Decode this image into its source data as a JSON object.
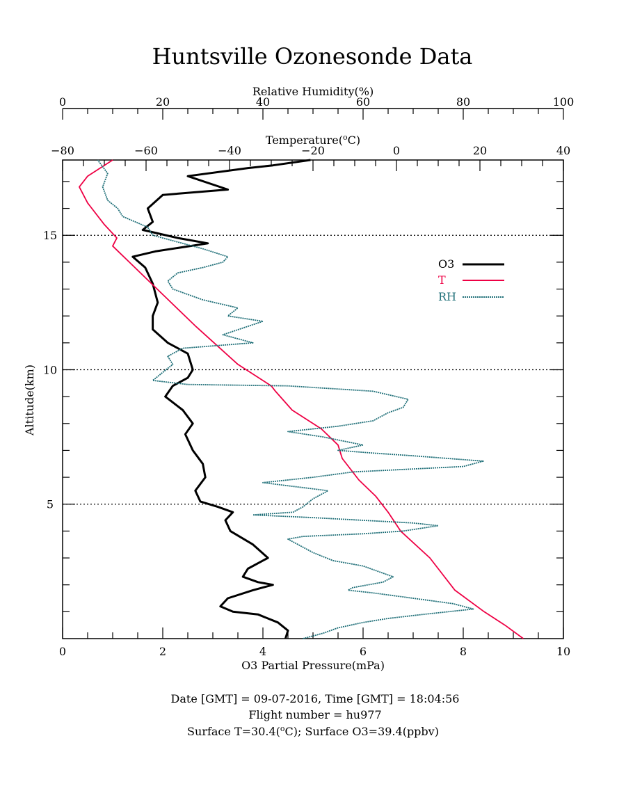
{
  "title": "Huntsville Ozonesonde Data",
  "footer": {
    "line1": "Date [GMT] = 09-07-2016,  Time [GMT] = 18:04:56",
    "line2": "Flight number = hu977",
    "line3_part1": "Surface T=30.4(",
    "line3_sup": "o",
    "line3_part2": "C); Surface O3=39.4(ppbv)"
  },
  "colors": {
    "o3": "#000000",
    "t": "#ee0044",
    "rh": "#1f6f78",
    "axis": "#000000"
  },
  "chart_data": {
    "type": "line",
    "title": "Huntsville Ozonesonde Data",
    "grid": "dotted horizontal lines at 5, 10, 15 km",
    "legend_placement": "right",
    "axes": {
      "y": {
        "label": "Altitude(km)",
        "range": [
          0,
          17.8
        ],
        "ticks": [
          5,
          10,
          15
        ]
      },
      "x_bottom": {
        "label": "O3 Partial Pressure(mPa)",
        "range": [
          0,
          10
        ],
        "ticks": [
          0,
          2,
          4,
          6,
          8,
          10
        ]
      },
      "x_top_temperature": {
        "label": "Temperature(",
        "label_sup": "o",
        "label_end": "C)",
        "range": [
          -80,
          40
        ],
        "ticks": [
          -80,
          -60,
          -40,
          -20,
          0,
          20,
          40
        ]
      },
      "x_top_humidity": {
        "label": "Relative Humidity(%)",
        "range": [
          0,
          100
        ],
        "ticks": [
          0,
          20,
          40,
          60,
          80,
          100
        ]
      }
    },
    "series": [
      {
        "name": "O3",
        "axis": "x_bottom",
        "points": [
          [
            4.45,
            0
          ],
          [
            4.5,
            0.3
          ],
          [
            4.3,
            0.6
          ],
          [
            3.9,
            0.9
          ],
          [
            3.4,
            1.0
          ],
          [
            3.15,
            1.2
          ],
          [
            3.3,
            1.5
          ],
          [
            3.8,
            1.8
          ],
          [
            4.2,
            2.0
          ],
          [
            3.9,
            2.1
          ],
          [
            3.6,
            2.3
          ],
          [
            3.7,
            2.6
          ],
          [
            4.1,
            3.0
          ],
          [
            3.8,
            3.5
          ],
          [
            3.35,
            4.0
          ],
          [
            3.25,
            4.4
          ],
          [
            3.4,
            4.7
          ],
          [
            3.1,
            4.9
          ],
          [
            2.75,
            5.1
          ],
          [
            2.65,
            5.5
          ],
          [
            2.85,
            6.0
          ],
          [
            2.8,
            6.5
          ],
          [
            2.6,
            7.0
          ],
          [
            2.45,
            7.6
          ],
          [
            2.6,
            8.0
          ],
          [
            2.4,
            8.5
          ],
          [
            2.05,
            9.0
          ],
          [
            2.2,
            9.4
          ],
          [
            2.5,
            9.7
          ],
          [
            2.6,
            10.0
          ],
          [
            2.5,
            10.6
          ],
          [
            2.1,
            11.0
          ],
          [
            1.8,
            11.5
          ],
          [
            1.8,
            12.0
          ],
          [
            1.9,
            12.5
          ],
          [
            1.8,
            13.2
          ],
          [
            1.65,
            13.8
          ],
          [
            1.4,
            14.2
          ],
          [
            1.85,
            14.4
          ],
          [
            2.9,
            14.7
          ],
          [
            2.3,
            14.9
          ],
          [
            1.6,
            15.2
          ],
          [
            1.8,
            15.5
          ],
          [
            1.7,
            16.0
          ],
          [
            2.0,
            16.5
          ],
          [
            3.3,
            16.7
          ],
          [
            2.5,
            17.2
          ],
          [
            3.7,
            17.5
          ],
          [
            4.2,
            17.6
          ],
          [
            4.95,
            17.8
          ]
        ]
      },
      {
        "name": "T",
        "axis": "x_top_temperature",
        "points": [
          [
            30.4,
            0
          ],
          [
            26,
            0.5
          ],
          [
            21,
            1.0
          ],
          [
            14,
            1.8
          ],
          [
            8,
            3.0
          ],
          [
            1,
            4.0
          ],
          [
            -2,
            4.7
          ],
          [
            -5,
            5.3
          ],
          [
            -9,
            5.9
          ],
          [
            -13,
            6.7
          ],
          [
            -14,
            7.2
          ],
          [
            -18,
            7.8
          ],
          [
            -25,
            8.5
          ],
          [
            -29,
            9.2
          ],
          [
            -30,
            9.4
          ],
          [
            -38,
            10.2
          ],
          [
            -43,
            10.9
          ],
          [
            -48,
            11.6
          ],
          [
            -54,
            12.5
          ],
          [
            -60,
            13.4
          ],
          [
            -64,
            14.0
          ],
          [
            -66,
            14.3
          ],
          [
            -68,
            14.6
          ],
          [
            -67,
            14.9
          ],
          [
            -70,
            15.4
          ],
          [
            -74,
            16.2
          ],
          [
            -76,
            16.8
          ],
          [
            -74,
            17.2
          ],
          [
            -72,
            17.4
          ],
          [
            -70,
            17.6
          ],
          [
            -68,
            17.8
          ]
        ]
      },
      {
        "name": "RH",
        "axis": "x_top_humidity",
        "points": [
          [
            48,
            0
          ],
          [
            52,
            0.2
          ],
          [
            55,
            0.4
          ],
          [
            60,
            0.6
          ],
          [
            65,
            0.75
          ],
          [
            72,
            0.9
          ],
          [
            82,
            1.1
          ],
          [
            78,
            1.3
          ],
          [
            70,
            1.5
          ],
          [
            62,
            1.7
          ],
          [
            57,
            1.8
          ],
          [
            58,
            1.9
          ],
          [
            64,
            2.1
          ],
          [
            66,
            2.3
          ],
          [
            63,
            2.5
          ],
          [
            60,
            2.7
          ],
          [
            54,
            2.9
          ],
          [
            50,
            3.2
          ],
          [
            47,
            3.5
          ],
          [
            45,
            3.7
          ],
          [
            48,
            3.8
          ],
          [
            60,
            3.9
          ],
          [
            68,
            4.0
          ],
          [
            75,
            4.2
          ],
          [
            70,
            4.3
          ],
          [
            50,
            4.5
          ],
          [
            38,
            4.6
          ],
          [
            46,
            4.7
          ],
          [
            48,
            4.9
          ],
          [
            50,
            5.2
          ],
          [
            53,
            5.5
          ],
          [
            40,
            5.8
          ],
          [
            50,
            6.0
          ],
          [
            58,
            6.2
          ],
          [
            80,
            6.4
          ],
          [
            84,
            6.6
          ],
          [
            70,
            6.8
          ],
          [
            62,
            6.9
          ],
          [
            55,
            7.0
          ],
          [
            60,
            7.2
          ],
          [
            52,
            7.5
          ],
          [
            45,
            7.7
          ],
          [
            55,
            7.9
          ],
          [
            62,
            8.1
          ],
          [
            65,
            8.4
          ],
          [
            68,
            8.6
          ],
          [
            69,
            8.9
          ],
          [
            62,
            9.2
          ],
          [
            45,
            9.4
          ],
          [
            25,
            9.45
          ],
          [
            18,
            9.6
          ],
          [
            20,
            9.9
          ],
          [
            22,
            10.2
          ],
          [
            21,
            10.5
          ],
          [
            24,
            10.8
          ],
          [
            38,
            11.0
          ],
          [
            32,
            11.3
          ],
          [
            40,
            11.8
          ],
          [
            33,
            12.0
          ],
          [
            35,
            12.3
          ],
          [
            28,
            12.6
          ],
          [
            22,
            13.0
          ],
          [
            21,
            13.3
          ],
          [
            23,
            13.6
          ],
          [
            28,
            13.8
          ],
          [
            32,
            14.0
          ],
          [
            33,
            14.2
          ],
          [
            28,
            14.5
          ],
          [
            22,
            14.8
          ],
          [
            18,
            15.0
          ],
          [
            17,
            15.3
          ],
          [
            12,
            15.7
          ],
          [
            11,
            16.0
          ],
          [
            9,
            16.3
          ],
          [
            8,
            16.8
          ],
          [
            9,
            17.3
          ],
          [
            7,
            17.8
          ]
        ]
      }
    ]
  }
}
